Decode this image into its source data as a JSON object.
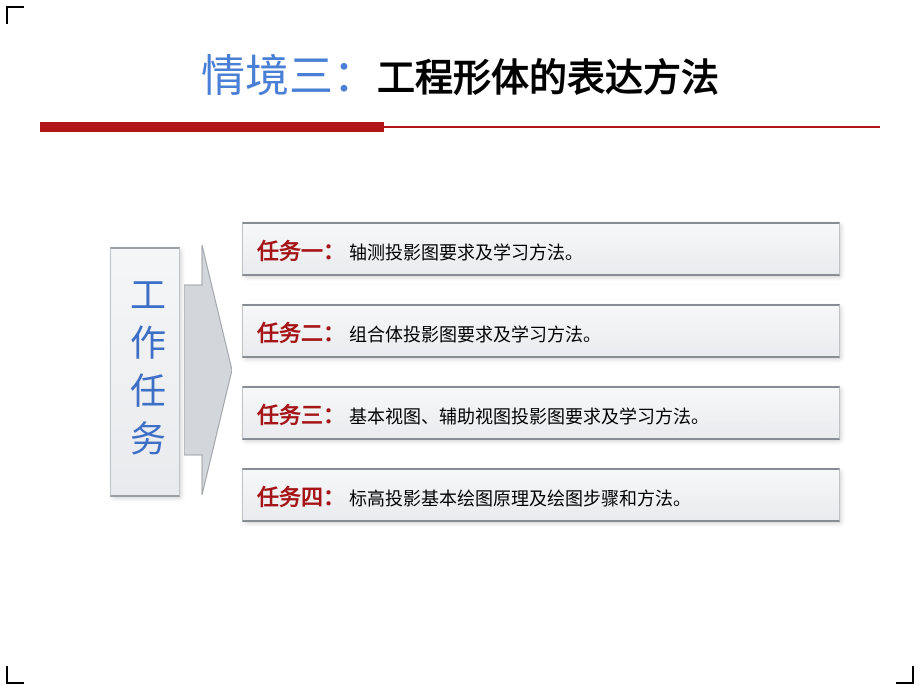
{
  "colors": {
    "title_prefix": "#4a7fd6",
    "title_suffix": "#000000",
    "underline": "#b31619",
    "vertical_text": "#3e6fc6",
    "task_label": "#a51417",
    "task_desc": "#000000",
    "arrow_fill": "#d3d6db",
    "arrow_stroke": "#9ca0a7"
  },
  "title": {
    "prefix": "情境三：",
    "suffix": "工程形体的表达方法"
  },
  "underline": {
    "thick_width_pct": 41,
    "thin_width_pct": 59
  },
  "vertical_label": "工作任务",
  "tasks": [
    {
      "label": "任务一：",
      "desc": "轴测投影图要求及学习方法。"
    },
    {
      "label": "任务二：",
      "desc": "组合体投影图要求及学习方法。"
    },
    {
      "label": "任务三：",
      "desc": "基本视图、辅助视图投影图要求及学习方法。"
    },
    {
      "label": "任务四：",
      "desc": "标高投影基本绘图原理及绘图步骤和方法。"
    }
  ]
}
